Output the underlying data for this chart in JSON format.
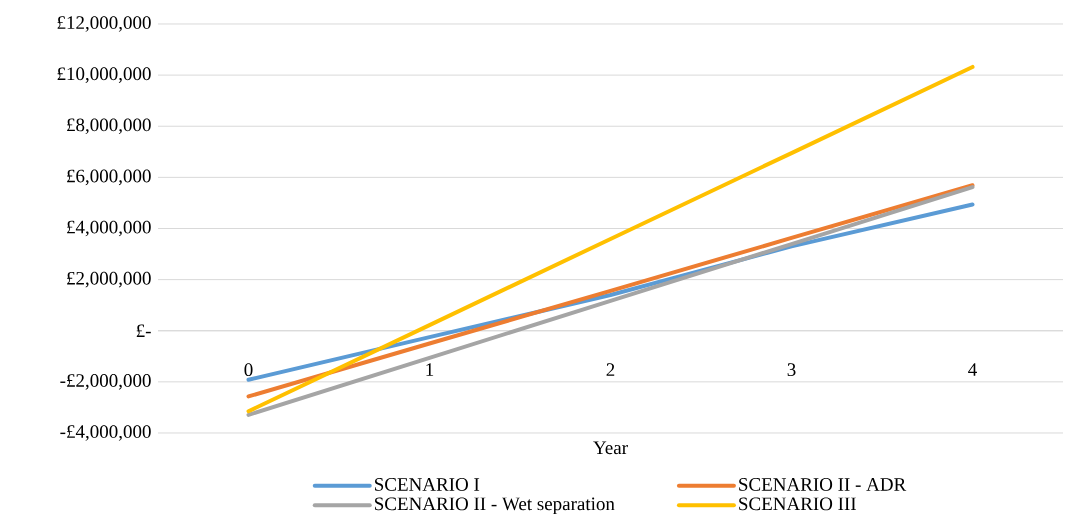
{
  "chart_data": {
    "type": "line",
    "xlabel": "Year",
    "categories": [
      "0",
      "1",
      "2",
      "3",
      "4"
    ],
    "series": [
      {
        "name": "SCENARIO I",
        "color": "#5b9bd5",
        "values": [
          -1920000,
          -250000,
          1400000,
          3300000,
          4940000
        ]
      },
      {
        "name": "SCENARIO II - ADR",
        "color": "#ed7d31",
        "values": [
          -2570000,
          -500000,
          1560000,
          3630000,
          5690000
        ]
      },
      {
        "name": "SCENARIO II - Wet separation",
        "color": "#a5a5a5",
        "values": [
          -3290000,
          -1060000,
          1170000,
          3390000,
          5620000
        ]
      },
      {
        "name": "SCENARIO III",
        "color": "#ffc000",
        "values": [
          -3150000,
          220000,
          3590000,
          6950000,
          10320000
        ]
      }
    ],
    "ylim": [
      -4000000,
      12000000
    ],
    "yticks": [
      {
        "value": -4000000,
        "label": "-£4,000,000"
      },
      {
        "value": -2000000,
        "label": "-£2,000,000"
      },
      {
        "value": 0,
        "label": "£-"
      },
      {
        "value": 2000000,
        "label": "£2,000,000"
      },
      {
        "value": 4000000,
        "label": "£4,000,000"
      },
      {
        "value": 6000000,
        "label": "£6,000,000"
      },
      {
        "value": 8000000,
        "label": "£8,000,000"
      },
      {
        "value": 10000000,
        "label": "£10,000,000"
      },
      {
        "value": 12000000,
        "label": "£12,000,000"
      }
    ],
    "grid": "y",
    "legend": "bottom",
    "marker": "none",
    "line_style": "solid"
  }
}
